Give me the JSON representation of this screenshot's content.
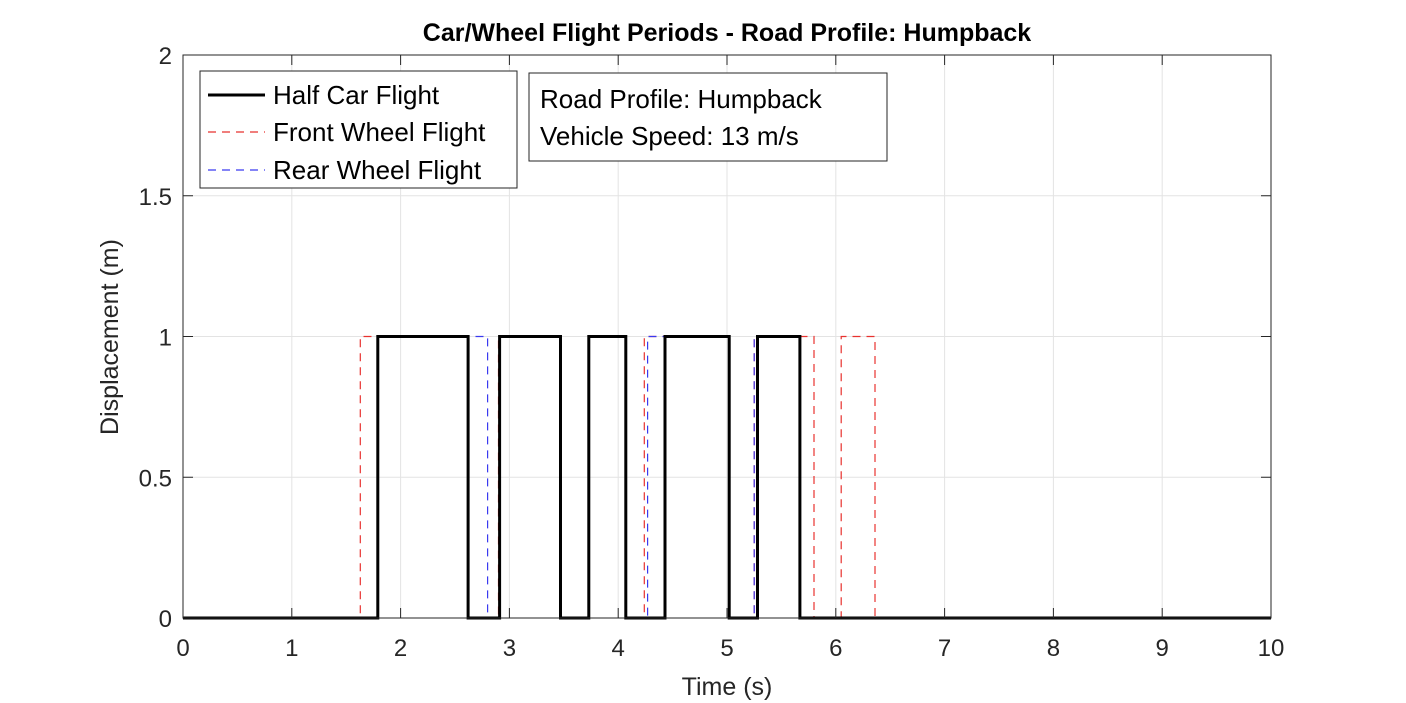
{
  "chart_data": {
    "type": "line",
    "title": "Car/Wheel Flight Periods - Road Profile: Humpback",
    "xlabel": "Time (s)",
    "ylabel": "Displacement (m)",
    "xlim": [
      0,
      10
    ],
    "ylim": [
      0,
      2
    ],
    "xticks": [
      0,
      1,
      2,
      3,
      4,
      5,
      6,
      7,
      8,
      9,
      10
    ],
    "yticks": [
      0,
      0.5,
      1,
      1.5,
      2
    ],
    "xtick_labels": [
      "0",
      "1",
      "2",
      "3",
      "4",
      "5",
      "6",
      "7",
      "8",
      "9",
      "10"
    ],
    "ytick_labels": [
      "0",
      "0.5",
      "1",
      "1.5",
      "2"
    ],
    "grid": true,
    "legend_position": "top-left",
    "series": [
      {
        "name": "Front Wheel Flight",
        "style": "dashed",
        "color": "#e8322f",
        "x": [
          0,
          1.63,
          1.63,
          2.62,
          2.62,
          2.9,
          2.9,
          3.47,
          3.47,
          3.73,
          3.73,
          4.07,
          4.07,
          4.24,
          4.24,
          5.02,
          5.02,
          5.25,
          5.25,
          5.8,
          5.8,
          6.05,
          6.05,
          6.36,
          6.36,
          10
        ],
        "y": [
          0,
          0,
          1,
          1,
          0,
          0,
          1,
          1,
          0,
          0,
          1,
          1,
          0,
          0,
          1,
          1,
          0,
          0,
          1,
          1,
          0,
          0,
          1,
          1,
          0,
          0
        ]
      },
      {
        "name": "Rear Wheel Flight",
        "style": "dashed",
        "color": "#3a3af0",
        "x": [
          0,
          1.79,
          1.79,
          2.8,
          2.8,
          2.91,
          2.91,
          3.47,
          3.47,
          3.73,
          3.73,
          4.07,
          4.07,
          4.27,
          4.27,
          5.02,
          5.02,
          5.25,
          5.25,
          5.67,
          5.67,
          10
        ],
        "y": [
          0,
          0,
          1,
          1,
          0,
          0,
          1,
          1,
          0,
          0,
          1,
          1,
          0,
          0,
          1,
          1,
          0,
          0,
          1,
          1,
          0,
          0
        ]
      },
      {
        "name": "Half Car Flight",
        "style": "solid",
        "color": "#000000",
        "x": [
          0,
          1.79,
          1.79,
          2.62,
          2.62,
          2.91,
          2.91,
          3.47,
          3.47,
          3.73,
          3.73,
          4.07,
          4.07,
          4.43,
          4.43,
          5.02,
          5.02,
          5.28,
          5.28,
          5.67,
          5.67,
          10
        ],
        "y": [
          0,
          0,
          1,
          1,
          0,
          0,
          1,
          1,
          0,
          0,
          1,
          1,
          0,
          0,
          1,
          1,
          0,
          0,
          1,
          1,
          0,
          0
        ]
      }
    ],
    "legend": [
      {
        "label": "Half Car Flight",
        "style": "solid",
        "color": "#000000"
      },
      {
        "label": "Front Wheel Flight",
        "style": "dashed",
        "color": "#e8322f"
      },
      {
        "label": "Rear Wheel Flight",
        "style": "dashed",
        "color": "#3a3af0"
      }
    ],
    "annotation": [
      "Road Profile: Humpback",
      "Vehicle Speed: 13 m/s"
    ]
  }
}
